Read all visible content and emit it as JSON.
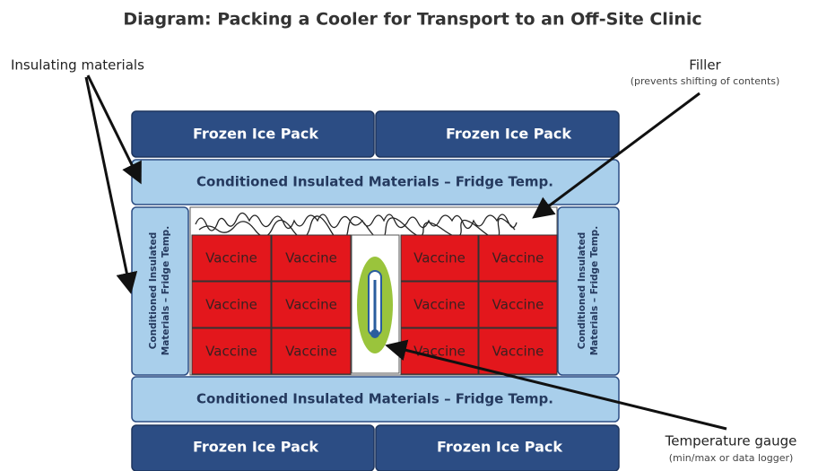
{
  "title": "Diagram: Packing a Cooler for Transport to an Off-Site Clinic",
  "callouts": {
    "insulating": {
      "label": "Insulating materials"
    },
    "filler": {
      "label": "Filler",
      "note": "(prevents shifting of contents)"
    },
    "gauge": {
      "label": "Temperature gauge",
      "note": "(min/max or data logger)"
    }
  },
  "ice_packs": [
    "Frozen Ice Pack",
    "Frozen Ice Pack",
    "Frozen Ice Pack",
    "Frozen Ice Pack"
  ],
  "bands": [
    "Conditioned Insulated Materials – Fridge Temp.",
    "Conditioned Insulated Materials – Fridge Temp."
  ],
  "side_panels": [
    [
      "Conditioned Insulated",
      "Materials – Fridge Temp."
    ],
    [
      "Conditioned Insulated",
      "Materials – Fridge Temp."
    ]
  ],
  "vaccines": [
    "Vaccine",
    "Vaccine",
    "Vaccine",
    "Vaccine",
    "Vaccine",
    "Vaccine",
    "Vaccine",
    "Vaccine",
    "Vaccine",
    "Vaccine",
    "Vaccine",
    "Vaccine"
  ]
}
